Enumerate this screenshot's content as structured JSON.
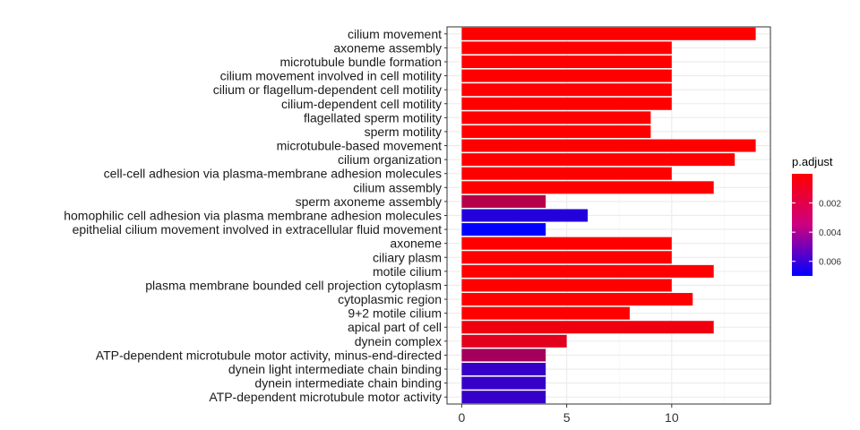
{
  "chart_data": {
    "type": "bar",
    "orientation": "horizontal",
    "categories": [
      "cilium movement",
      "axoneme assembly",
      "microtubule bundle formation",
      "cilium movement involved in cell motility",
      "cilium or flagellum-dependent cell motility",
      "cilium-dependent cell motility",
      "flagellated sperm motility",
      "sperm motility",
      "microtubule-based movement",
      "cilium organization",
      "cell-cell adhesion via plasma-membrane adhesion molecules",
      "cilium assembly",
      "sperm axoneme assembly",
      "homophilic cell adhesion via plasma membrane adhesion molecules",
      "epithelial cilium movement involved in extracellular fluid movement",
      "axoneme",
      "ciliary plasm",
      "motile cilium",
      "plasma membrane bounded cell projection cytoplasm",
      "cytoplasmic region",
      "9+2 motile cilium",
      "apical part of cell",
      "dynein complex",
      "ATP-dependent microtubule motor activity, minus-end-directed",
      "dynein light intermediate chain binding",
      "dynein intermediate chain binding",
      "ATP-dependent microtubule motor activity"
    ],
    "values": [
      14,
      10,
      10,
      10,
      10,
      10,
      9,
      9,
      14,
      13,
      10,
      12,
      4,
      6,
      4,
      10,
      10,
      12,
      10,
      11,
      8,
      12,
      5,
      4,
      4,
      4,
      4
    ],
    "p_adjust": [
      0.0,
      0.0,
      0.0,
      0.0,
      0.0,
      0.0,
      0.0,
      0.0,
      0.0,
      0.0,
      0.0,
      0.0,
      0.002,
      0.006,
      0.007,
      0.0,
      0.0,
      0.0,
      0.0,
      0.0,
      0.0,
      0.0004,
      0.0008,
      0.0025,
      0.0055,
      0.0055,
      0.0055
    ],
    "x_ticks": [
      0,
      5,
      10
    ],
    "xlim": [
      -0.7,
      14.7
    ],
    "grid": true,
    "legend": {
      "title": "p.adjust",
      "position": "right",
      "ticks": [
        0.002,
        0.004,
        0.006
      ],
      "tick_labels": [
        "0.002",
        "0.004",
        "0.006"
      ],
      "range": [
        0.0,
        0.007
      ],
      "color_low": "#FF0000",
      "color_high": "#0000FF"
    }
  }
}
